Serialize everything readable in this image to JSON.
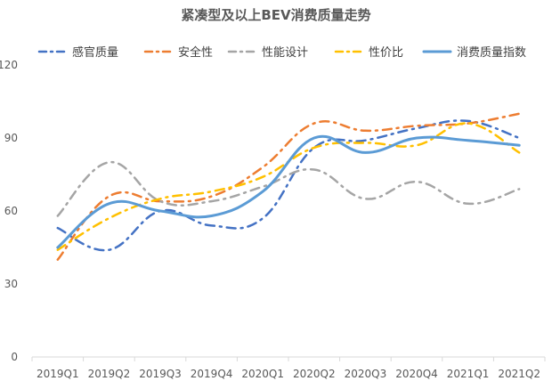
{
  "chart_data": {
    "type": "line",
    "title": "紧凑型及以上BEV消费质量走势",
    "xlabel": "",
    "ylabel": "",
    "categories": [
      "2019Q1",
      "2019Q2",
      "2019Q3",
      "2019Q4",
      "2020Q1",
      "2020Q2",
      "2020Q3",
      "2020Q4",
      "2021Q1",
      "2021Q2"
    ],
    "ylim": [
      0,
      120
    ],
    "yticks": [
      0,
      30,
      60,
      90,
      120
    ],
    "grid": false,
    "legend_position": "top",
    "series": [
      {
        "name": "感官质量",
        "color": "#4472C4",
        "style": "dash-dot",
        "values": [
          53,
          44,
          60,
          54,
          57,
          86,
          89,
          94,
          97,
          90
        ]
      },
      {
        "name": "安全性",
        "color": "#ED7D31",
        "style": "dash-dot",
        "values": [
          40,
          66,
          64,
          66,
          78,
          96,
          93,
          95,
          96,
          100
        ]
      },
      {
        "name": "性能设计",
        "color": "#A5A5A5",
        "style": "dash-dot",
        "values": [
          58,
          80,
          64,
          64,
          70,
          77,
          65,
          72,
          63,
          69
        ]
      },
      {
        "name": "性价比",
        "color": "#FFC000",
        "style": "dash-dot",
        "values": [
          44,
          57,
          65,
          68,
          74,
          86,
          88,
          87,
          96,
          84
        ]
      },
      {
        "name": "消费质量指数",
        "color": "#5B9BD5",
        "style": "solid",
        "values": [
          45,
          63,
          60,
          58,
          68,
          90,
          84,
          90,
          89,
          87
        ]
      }
    ]
  }
}
